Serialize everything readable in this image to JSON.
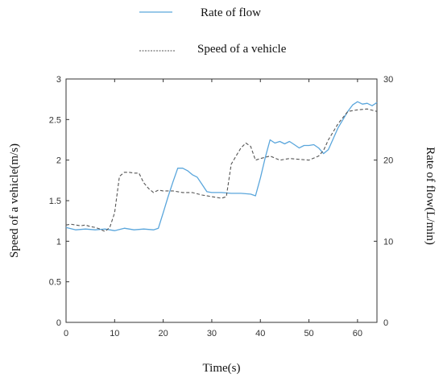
{
  "chart_data": {
    "type": "line",
    "xlabel": "Time(s)",
    "ylabel_left": "Speed of a vehicle(m/s)",
    "ylabel_right": "Rate of flow(L/min)",
    "xlim": [
      0,
      64
    ],
    "ylim_left": [
      0,
      3
    ],
    "ylim_right": [
      0,
      30
    ],
    "x_ticks": [
      "0",
      "10",
      "20",
      "30",
      "40",
      "50",
      "60"
    ],
    "y_ticks_left": [
      "0",
      "0.5",
      "1",
      "1.5",
      "2",
      "2.5",
      "3"
    ],
    "y_ticks_right": [
      "0",
      "10",
      "20",
      "30"
    ],
    "grid": false,
    "legend_placement": "top-center",
    "series": [
      {
        "name": "Rate of flow",
        "axis": "right",
        "style": "solid",
        "color": "#5aa6dc",
        "x": [
          0,
          2,
          4,
          6,
          8,
          10,
          12,
          14,
          16,
          18,
          19,
          20,
          21,
          22,
          23,
          24,
          25,
          26,
          27,
          28,
          29,
          30,
          32,
          34,
          36,
          38,
          39,
          40,
          41,
          42,
          43,
          44,
          45,
          46,
          47,
          48,
          49,
          50,
          51,
          52,
          53,
          54,
          56,
          58,
          59,
          60,
          61,
          62,
          63,
          64
        ],
        "values": [
          11.7,
          11.4,
          11.5,
          11.4,
          11.5,
          11.3,
          11.6,
          11.4,
          11.5,
          11.4,
          11.6,
          13.5,
          15.5,
          17.3,
          19.0,
          19.0,
          18.7,
          18.2,
          17.9,
          17.0,
          16.1,
          16.0,
          16.0,
          15.9,
          15.9,
          15.8,
          15.6,
          17.8,
          20.3,
          22.5,
          22.1,
          22.3,
          22.0,
          22.3,
          21.9,
          21.5,
          21.8,
          21.8,
          21.9,
          21.5,
          20.8,
          21.3,
          24.0,
          26.0,
          26.8,
          27.2,
          26.9,
          27.0,
          26.7,
          27.1
        ]
      },
      {
        "name": "Speed of a vehicle",
        "axis": "left",
        "style": "dashed",
        "color": "#555555",
        "x": [
          0,
          1,
          2,
          3,
          4,
          5,
          6,
          7,
          8,
          9,
          10,
          11,
          12,
          13,
          14,
          15,
          16,
          17,
          18,
          19,
          20,
          22,
          24,
          26,
          28,
          30,
          32,
          33,
          34,
          35,
          36,
          37,
          38,
          39,
          40,
          42,
          44,
          46,
          48,
          50,
          52,
          53,
          54,
          56,
          58,
          60,
          62,
          64
        ],
        "values": [
          1.2,
          1.21,
          1.2,
          1.19,
          1.2,
          1.18,
          1.17,
          1.15,
          1.12,
          1.17,
          1.35,
          1.8,
          1.85,
          1.85,
          1.84,
          1.84,
          1.72,
          1.65,
          1.6,
          1.63,
          1.62,
          1.62,
          1.6,
          1.6,
          1.57,
          1.55,
          1.53,
          1.55,
          1.95,
          2.05,
          2.15,
          2.21,
          2.17,
          2.0,
          2.02,
          2.05,
          2.0,
          2.02,
          2.01,
          2.0,
          2.05,
          2.12,
          2.25,
          2.45,
          2.6,
          2.62,
          2.63,
          2.6
        ]
      }
    ]
  }
}
